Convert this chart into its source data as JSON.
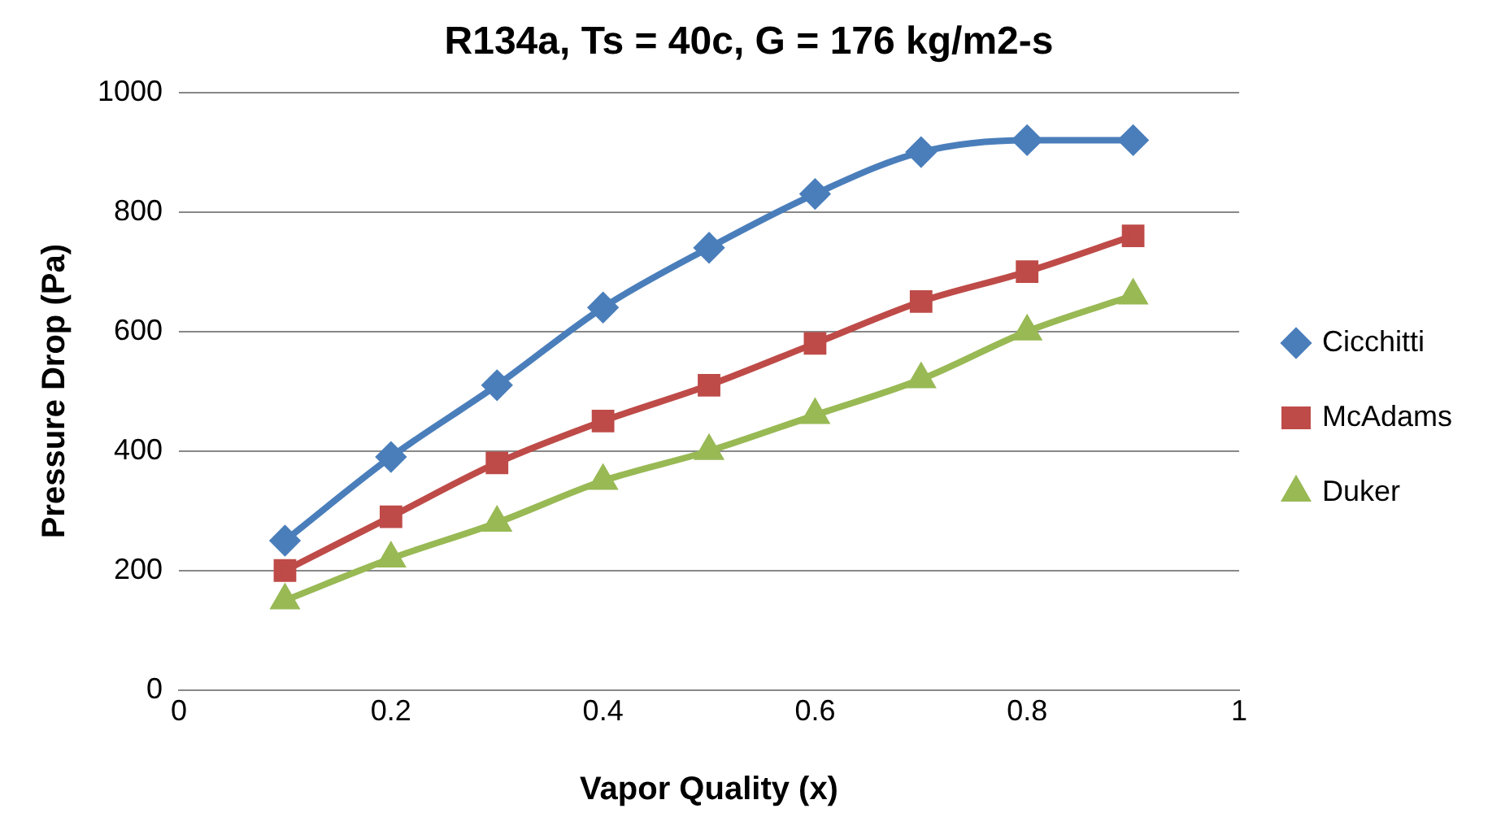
{
  "chart_data": {
    "type": "line",
    "title": "R134a, Ts = 40c, G = 176 kg/m2-s",
    "xlabel": "Vapor Quality (x)",
    "ylabel": "Pressure Drop (Pa)",
    "x": [
      0.1,
      0.2,
      0.3,
      0.4,
      0.5,
      0.6,
      0.7,
      0.8,
      0.9
    ],
    "series": [
      {
        "name": "Cicchitti",
        "color": "#4a7ebb",
        "marker": "diamond",
        "values": [
          250,
          390,
          510,
          640,
          740,
          830,
          900,
          920,
          920
        ]
      },
      {
        "name": "McAdams",
        "color": "#be4b48",
        "marker": "square",
        "values": [
          200,
          290,
          380,
          450,
          510,
          580,
          650,
          700,
          760
        ]
      },
      {
        "name": "Duker",
        "color": "#98b954",
        "marker": "triangle",
        "values": [
          150,
          220,
          280,
          350,
          400,
          460,
          520,
          600,
          660
        ]
      }
    ],
    "xlim": [
      0,
      1
    ],
    "xticks": [
      0,
      0.2,
      0.4,
      0.6,
      0.8,
      1
    ],
    "ylim": [
      0,
      1000
    ],
    "yticks": [
      0,
      200,
      400,
      600,
      800,
      1000
    ],
    "grid": "y",
    "legend": "right",
    "line_style": "solid"
  }
}
